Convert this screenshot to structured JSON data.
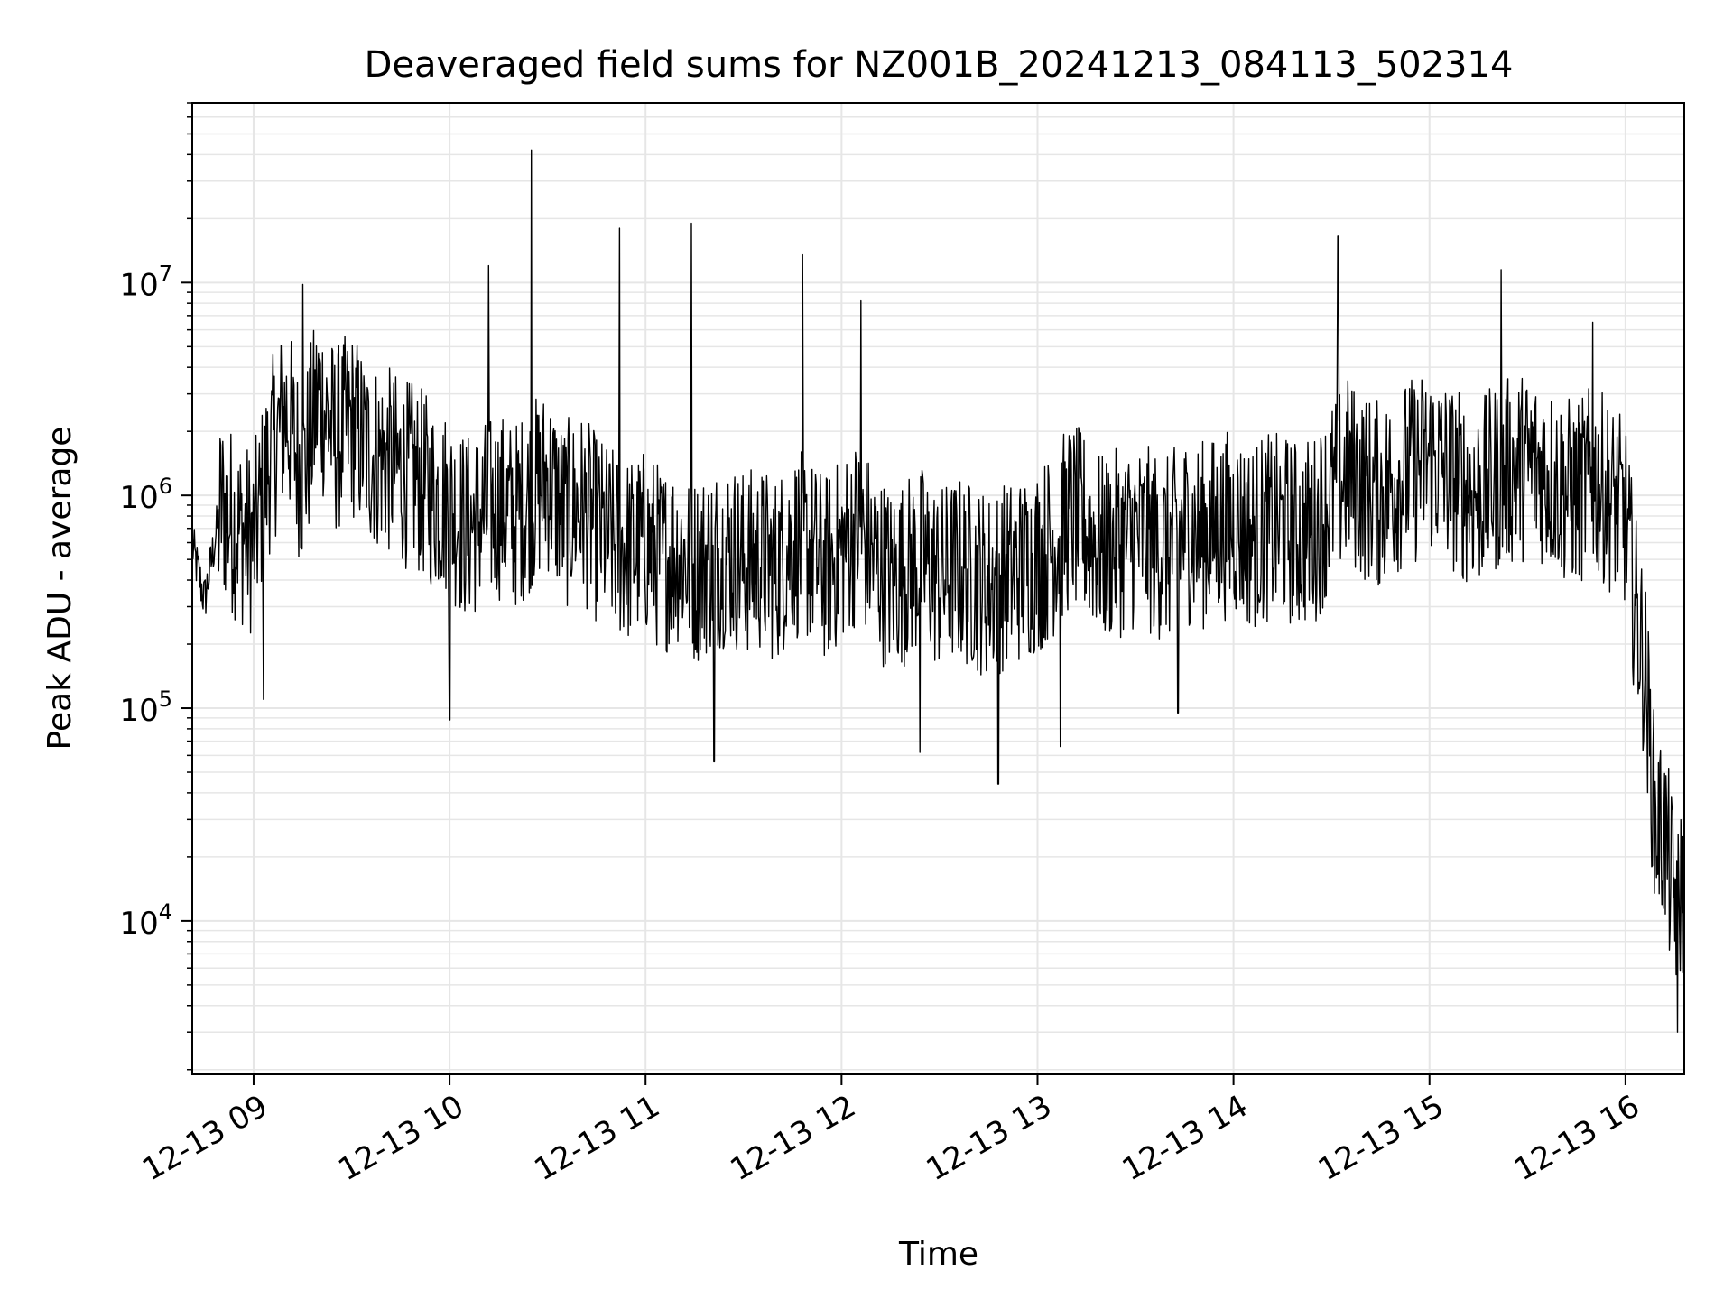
{
  "chart_data": {
    "type": "line",
    "title": "Deaveraged field sums for NZ001B_20241213_084113_502314",
    "xlabel": "Time",
    "ylabel": "Peak ADU - average",
    "yscale": "log",
    "ylim": [
      1900,
      70000000
    ],
    "xlim": [
      "2024-12-13 08:41:13",
      "2024-12-13 16:18:00"
    ],
    "grid": true,
    "x_ticks": [
      {
        "time": "2024-12-13 09:00",
        "label": "12-13 09"
      },
      {
        "time": "2024-12-13 10:00",
        "label": "12-13 10"
      },
      {
        "time": "2024-12-13 11:00",
        "label": "12-13 11"
      },
      {
        "time": "2024-12-13 12:00",
        "label": "12-13 12"
      },
      {
        "time": "2024-12-13 13:00",
        "label": "12-13 13"
      },
      {
        "time": "2024-12-13 14:00",
        "label": "12-13 14"
      },
      {
        "time": "2024-12-13 15:00",
        "label": "12-13 15"
      },
      {
        "time": "2024-12-13 16:00",
        "label": "12-13 16"
      }
    ],
    "y_ticks": [
      {
        "value": 10000,
        "base": "10",
        "exp": "4"
      },
      {
        "value": 100000,
        "base": "10",
        "exp": "5"
      },
      {
        "value": 1000000,
        "base": "10",
        "exp": "6"
      },
      {
        "value": 10000000,
        "base": "10",
        "exp": "7"
      }
    ],
    "series": [
      {
        "color": "#000000",
        "x": [
          "2024-12-13 08:41",
          "2024-12-13 08:45",
          "2024-12-13 08:50",
          "2024-12-13 08:55",
          "2024-12-13 09:00",
          "2024-12-13 09:05",
          "2024-12-13 09:10",
          "2024-12-13 09:15",
          "2024-12-13 09:20",
          "2024-12-13 09:25",
          "2024-12-13 09:30",
          "2024-12-13 09:35",
          "2024-12-13 09:40",
          "2024-12-13 09:45",
          "2024-12-13 09:50",
          "2024-12-13 09:55",
          "2024-12-13 10:00",
          "2024-12-13 10:05",
          "2024-12-13 10:10",
          "2024-12-13 10:15",
          "2024-12-13 10:20",
          "2024-12-13 10:25",
          "2024-12-13 10:30",
          "2024-12-13 10:35",
          "2024-12-13 10:40",
          "2024-12-13 10:45",
          "2024-12-13 10:50",
          "2024-12-13 10:55",
          "2024-12-13 11:00",
          "2024-12-13 11:05",
          "2024-12-13 11:10",
          "2024-12-13 11:15",
          "2024-12-13 11:20",
          "2024-12-13 11:25",
          "2024-12-13 11:30",
          "2024-12-13 11:35",
          "2024-12-13 11:40",
          "2024-12-13 11:45",
          "2024-12-13 11:50",
          "2024-12-13 11:55",
          "2024-12-13 12:00",
          "2024-12-13 12:05",
          "2024-12-13 12:10",
          "2024-12-13 12:15",
          "2024-12-13 12:20",
          "2024-12-13 12:25",
          "2024-12-13 12:30",
          "2024-12-13 12:35",
          "2024-12-13 12:40",
          "2024-12-13 12:45",
          "2024-12-13 12:50",
          "2024-12-13 12:55",
          "2024-12-13 13:00",
          "2024-12-13 13:05",
          "2024-12-13 13:10",
          "2024-12-13 13:15",
          "2024-12-13 13:20",
          "2024-12-13 13:25",
          "2024-12-13 13:30",
          "2024-12-13 13:35",
          "2024-12-13 13:40",
          "2024-12-13 13:45",
          "2024-12-13 13:50",
          "2024-12-13 13:55",
          "2024-12-13 14:00",
          "2024-12-13 14:05",
          "2024-12-13 14:10",
          "2024-12-13 14:15",
          "2024-12-13 14:20",
          "2024-12-13 14:25",
          "2024-12-13 14:30",
          "2024-12-13 14:35",
          "2024-12-13 14:40",
          "2024-12-13 14:45",
          "2024-12-13 14:50",
          "2024-12-13 14:55",
          "2024-12-13 15:00",
          "2024-12-13 15:05",
          "2024-12-13 15:10",
          "2024-12-13 15:15",
          "2024-12-13 15:20",
          "2024-12-13 15:25",
          "2024-12-13 15:30",
          "2024-12-13 15:35",
          "2024-12-13 15:40",
          "2024-12-13 15:45",
          "2024-12-13 15:50",
          "2024-12-13 15:55",
          "2024-12-13 16:00",
          "2024-12-13 16:03",
          "2024-12-13 16:06",
          "2024-12-13 16:09",
          "2024-12-13 16:12",
          "2024-12-13 16:15",
          "2024-12-13 16:18"
        ],
        "y": [
          600000,
          320000,
          900000,
          700000,
          600000,
          1500000,
          2500000,
          1200000,
          3000000,
          1800000,
          2200000,
          1600000,
          1500000,
          1300000,
          1200000,
          1000000,
          900000,
          700000,
          800000,
          900000,
          800000,
          1000000,
          1200000,
          800000,
          900000,
          700000,
          600000,
          550000,
          600000,
          500000,
          550000,
          450000,
          500000,
          550000,
          480000,
          500000,
          450000,
          600000,
          550000,
          450000,
          550000,
          700000,
          500000,
          400000,
          450000,
          500000,
          400000,
          450000,
          420000,
          380000,
          420000,
          450000,
          500000,
          600000,
          800000,
          700000,
          550000,
          600000,
          650000,
          600000,
          550000,
          700000,
          650000,
          700000,
          750000,
          650000,
          700000,
          700000,
          650000,
          700000,
          1000000,
          1300000,
          1100000,
          1000000,
          1200000,
          1300000,
          1500000,
          1300000,
          1100000,
          1000000,
          1200000,
          1300000,
          1400000,
          1300000,
          1100000,
          1000000,
          1200000,
          1000000,
          800000,
          300000,
          150000,
          30000,
          25000,
          12000,
          15000
        ],
        "spikes": [
          {
            "x": "2024-12-13 09:15",
            "y": 9800000
          },
          {
            "x": "2024-12-13 10:12",
            "y": 12000000
          },
          {
            "x": "2024-12-13 10:25",
            "y": 42000000
          },
          {
            "x": "2024-12-13 10:52",
            "y": 18000000
          },
          {
            "x": "2024-12-13 11:14",
            "y": 19000000
          },
          {
            "x": "2024-12-13 11:48",
            "y": 13500000
          },
          {
            "x": "2024-12-13 12:06",
            "y": 8200000
          },
          {
            "x": "2024-12-13 14:32",
            "y": 16500000
          },
          {
            "x": "2024-12-13 15:22",
            "y": 11500000
          },
          {
            "x": "2024-12-13 15:50",
            "y": 6500000
          }
        ],
        "dips": [
          {
            "x": "2024-12-13 09:03",
            "y": 110000
          },
          {
            "x": "2024-12-13 10:00",
            "y": 88000
          },
          {
            "x": "2024-12-13 11:21",
            "y": 56000
          },
          {
            "x": "2024-12-13 12:24",
            "y": 62000
          },
          {
            "x": "2024-12-13 12:48",
            "y": 44000
          },
          {
            "x": "2024-12-13 13:07",
            "y": 66000
          },
          {
            "x": "2024-12-13 13:43",
            "y": 95000
          },
          {
            "x": "2024-12-13 16:16",
            "y": 3000
          }
        ]
      }
    ]
  }
}
